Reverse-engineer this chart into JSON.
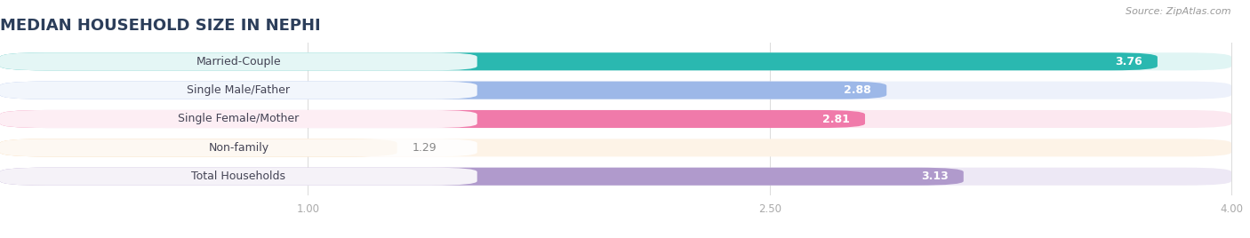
{
  "title": "MEDIAN HOUSEHOLD SIZE IN NEPHI",
  "source": "Source: ZipAtlas.com",
  "categories": [
    "Married-Couple",
    "Single Male/Father",
    "Single Female/Mother",
    "Non-family",
    "Total Households"
  ],
  "values": [
    3.76,
    2.88,
    2.81,
    1.29,
    3.13
  ],
  "bar_colors": [
    "#2ab8b0",
    "#9db8e8",
    "#f07aaa",
    "#f5cc99",
    "#b09acc"
  ],
  "bg_colors": [
    "#e0f5f4",
    "#edf1fb",
    "#fce8f0",
    "#fdf3e7",
    "#ede8f5"
  ],
  "xlim_data": [
    0.0,
    4.2
  ],
  "xmin": 0.0,
  "xmax": 4.0,
  "xticks": [
    1.0,
    2.5,
    4.0
  ],
  "title_fontsize": 13,
  "label_fontsize": 9,
  "value_fontsize": 9,
  "bar_height": 0.62,
  "background_color": "#ffffff",
  "grid_color": "#dddddd",
  "label_color": "#444455",
  "value_color_inside": "#ffffff",
  "value_color_outside": "#888888"
}
